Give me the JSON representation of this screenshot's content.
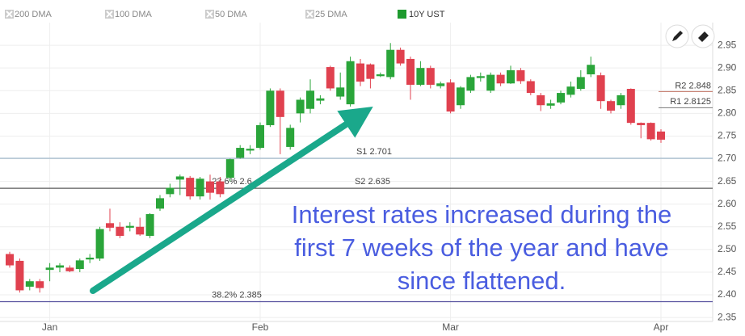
{
  "chart_data": {
    "type": "candlestick",
    "legend": [
      "200 DMA",
      "100 DMA",
      "50 DMA",
      "25 DMA"
    ],
    "series": [
      {
        "name": "10Y UST",
        "color": "#1e9a2e",
        "up_color": "#2aa53a",
        "down_color": "#e0414f",
        "open": [
          2.49,
          2.475,
          2.418,
          2.43,
          2.455,
          2.46,
          2.46,
          2.457,
          2.478,
          2.48,
          2.558,
          2.55,
          2.548,
          2.55,
          2.53,
          2.59,
          2.622,
          2.654,
          2.658,
          2.617,
          2.65,
          2.65,
          2.658,
          2.702,
          2.718,
          2.724,
          2.774,
          2.85,
          2.726,
          2.8,
          2.81,
          2.828,
          2.902,
          2.837,
          2.82,
          2.91,
          2.908,
          2.882,
          2.88,
          2.94,
          2.92,
          2.863,
          2.9,
          2.86,
          2.868,
          2.818,
          2.85,
          2.878,
          2.85,
          2.885,
          2.866,
          2.895,
          2.871,
          2.84,
          2.817,
          2.824,
          2.841,
          2.854,
          2.886,
          2.884,
          2.827,
          2.818,
          2.854,
          2.779,
          2.779,
          2.76
        ],
        "high": [
          2.495,
          2.48,
          2.435,
          2.435,
          2.47,
          2.47,
          2.465,
          2.48,
          2.49,
          2.55,
          2.59,
          2.56,
          2.56,
          2.57,
          2.58,
          2.62,
          2.645,
          2.665,
          2.662,
          2.66,
          2.665,
          2.66,
          2.7,
          2.73,
          2.73,
          2.78,
          2.855,
          2.855,
          2.775,
          2.835,
          2.875,
          2.84,
          2.905,
          2.89,
          2.925,
          2.92,
          2.91,
          2.89,
          2.955,
          2.945,
          2.925,
          2.915,
          2.905,
          2.87,
          2.875,
          2.86,
          2.885,
          2.89,
          2.89,
          2.89,
          2.905,
          2.9,
          2.875,
          2.845,
          2.83,
          2.85,
          2.87,
          2.895,
          2.925,
          2.89,
          2.83,
          2.845,
          2.855,
          2.78,
          2.78,
          2.765
        ],
        "low": [
          2.46,
          2.405,
          2.41,
          2.405,
          2.43,
          2.45,
          2.45,
          2.45,
          2.47,
          2.475,
          2.54,
          2.525,
          2.54,
          2.53,
          2.525,
          2.585,
          2.615,
          2.62,
          2.61,
          2.61,
          2.61,
          2.615,
          2.65,
          2.7,
          2.71,
          2.72,
          2.77,
          2.71,
          2.72,
          2.78,
          2.8,
          2.82,
          2.85,
          2.83,
          2.815,
          2.86,
          2.855,
          2.88,
          2.875,
          2.905,
          2.83,
          2.86,
          2.855,
          2.855,
          2.8,
          2.81,
          2.845,
          2.87,
          2.845,
          2.86,
          2.865,
          2.865,
          2.84,
          2.805,
          2.81,
          2.82,
          2.835,
          2.85,
          2.88,
          2.81,
          2.8,
          2.81,
          2.775,
          2.745,
          2.74,
          2.735
        ],
        "close": [
          2.465,
          2.41,
          2.43,
          2.415,
          2.46,
          2.465,
          2.452,
          2.476,
          2.482,
          2.545,
          2.548,
          2.53,
          2.552,
          2.533,
          2.578,
          2.613,
          2.636,
          2.661,
          2.617,
          2.656,
          2.625,
          2.622,
          2.699,
          2.724,
          2.722,
          2.774,
          2.85,
          2.792,
          2.768,
          2.83,
          2.85,
          2.833,
          2.855,
          2.857,
          2.915,
          2.87,
          2.876,
          2.886,
          2.94,
          2.91,
          2.863,
          2.9,
          2.863,
          2.866,
          2.804,
          2.857,
          2.88,
          2.882,
          2.885,
          2.866,
          2.895,
          2.871,
          2.845,
          2.818,
          2.822,
          2.845,
          2.859,
          2.88,
          2.907,
          2.827,
          2.806,
          2.84,
          2.779,
          2.774,
          2.743,
          2.742
        ]
      }
    ],
    "categories": [
      null,
      null,
      null,
      null,
      "Jan",
      null,
      null,
      null,
      null,
      null,
      null,
      null,
      null,
      null,
      null,
      null,
      null,
      null,
      null,
      null,
      null,
      null,
      null,
      null,
      null,
      "Feb",
      null,
      null,
      null,
      null,
      null,
      null,
      null,
      null,
      null,
      null,
      null,
      null,
      null,
      null,
      null,
      null,
      null,
      null,
      "Mar",
      null,
      null,
      null,
      null,
      null,
      null,
      null,
      null,
      null,
      null,
      null,
      null,
      null,
      null,
      null,
      null,
      null,
      null,
      null,
      null,
      "Apr"
    ],
    "ylim": [
      2.32,
      3.0
    ],
    "yticks": [
      2.35,
      {
        "value": 2.4,
        "label": "2.40"
      },
      2.45,
      {
        "value": 2.5,
        "label": "2.50"
      },
      2.55,
      {
        "value": 2.6,
        "label": "2.60"
      },
      2.65,
      {
        "value": 2.7,
        "label": "2.70"
      },
      2.75,
      {
        "value": 2.8,
        "label": "2.80"
      },
      2.85,
      {
        "value": 2.9,
        "label": "2.90"
      },
      2.95
    ],
    "grid": true,
    "levels": [
      {
        "label": "S1 2.701",
        "value": 2.701,
        "color": "#9fb6c9"
      },
      {
        "label": "S2 2.635",
        "value": 2.635,
        "color": "#555555"
      },
      {
        "label": "38.2% 2.385",
        "value": 2.385,
        "color": "#55509e"
      },
      {
        "label": "23.6% 2.6",
        "value": 2.635,
        "color": "#555555"
      }
    ],
    "pivots": [
      {
        "label": "R2 2.848",
        "value": 2.848,
        "color": "#c07060"
      },
      {
        "label": "R1 2.8125",
        "value": 2.8125,
        "color": "#777777"
      }
    ],
    "annotation": [
      "Interest rates increased during the",
      "first 7 weeks of the year and have",
      "since flattened."
    ]
  }
}
